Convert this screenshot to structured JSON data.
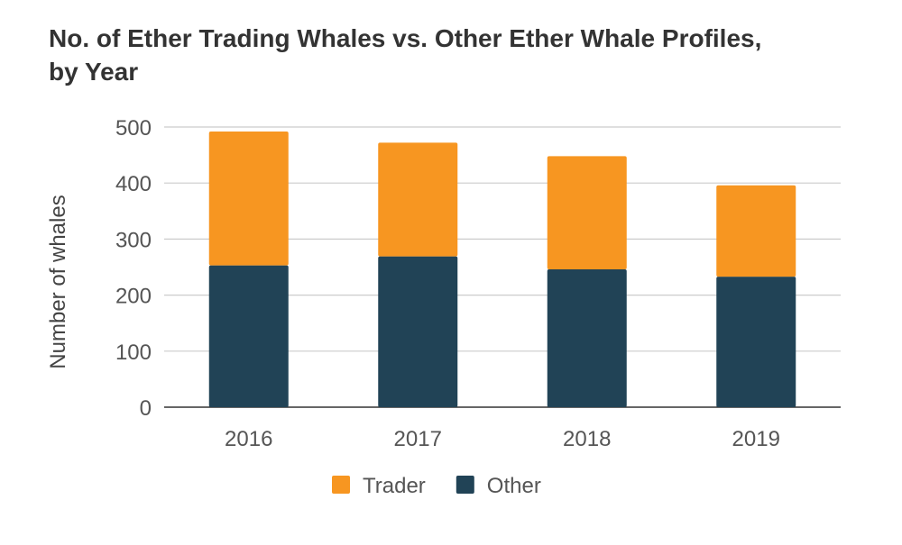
{
  "chart_data": {
    "type": "bar",
    "stacked": true,
    "title": "No. of Ether Trading Whales vs. Other Ether Whale Profiles, by Year",
    "xlabel": "",
    "ylabel": "Number of whales",
    "ylim": [
      0,
      500
    ],
    "yticks": [
      0,
      100,
      200,
      300,
      400,
      500
    ],
    "grid": true,
    "legend": "bottom",
    "categories": [
      "2016",
      "2017",
      "2018",
      "2019"
    ],
    "series": [
      {
        "name": "Other",
        "values": [
          253,
          269,
          246,
          233
        ],
        "color": "#214356"
      },
      {
        "name": "Trader",
        "values": [
          239,
          203,
          202,
          163
        ],
        "color": "#f79621"
      }
    ],
    "legend_order": [
      "Trader",
      "Other"
    ]
  }
}
